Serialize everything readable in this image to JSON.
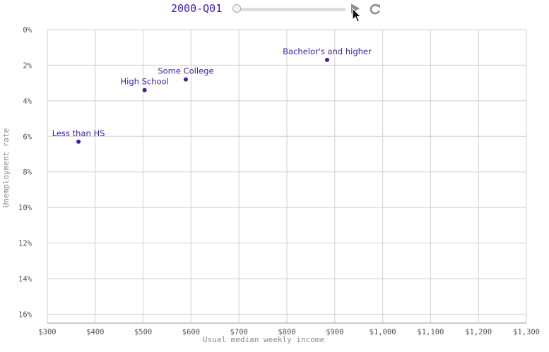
{
  "controls": {
    "period": "2000-Q01",
    "play_icon": "play-icon",
    "replay_icon": "replay-icon",
    "slider_progress": 0
  },
  "colors": {
    "point": "#4a1aa6",
    "grid": "#cfcfcf",
    "label": "#3b1da8"
  },
  "chart_data": {
    "type": "scatter",
    "xlabel": "Usual median weekly income",
    "ylabel": "Unemployment rate",
    "xlim": [
      300,
      1300
    ],
    "ylim": [
      0,
      16.5
    ],
    "y_inverted": true,
    "grid": true,
    "x_ticks": [
      300,
      400,
      500,
      600,
      700,
      800,
      900,
      1000,
      1100,
      1200,
      1300
    ],
    "x_tick_labels": [
      "$300",
      "$400",
      "$500",
      "$600",
      "$700",
      "$800",
      "$900",
      "$1,000",
      "$1,100",
      "$1,200",
      "$1,300"
    ],
    "y_ticks": [
      0,
      2,
      4,
      6,
      8,
      10,
      12,
      14,
      16
    ],
    "y_tick_labels": [
      "0%",
      "2%",
      "4%",
      "6%",
      "8%",
      "10%",
      "12%",
      "14%",
      "16%"
    ],
    "points": [
      {
        "label": "Less than HS",
        "x": 365,
        "y": 6.3
      },
      {
        "label": "High School",
        "x": 503,
        "y": 3.4
      },
      {
        "label": "Some College",
        "x": 589,
        "y": 2.8
      },
      {
        "label": "Bachelor's and higher",
        "x": 884,
        "y": 1.7
      }
    ]
  }
}
